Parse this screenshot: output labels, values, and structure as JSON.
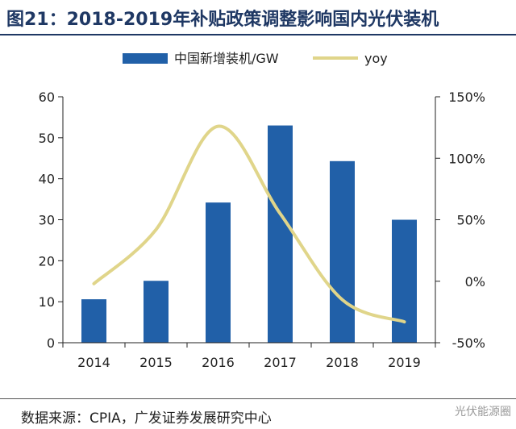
{
  "header": {
    "title": "图21：2018-2019年补贴政策调整影响国内光伏装机"
  },
  "footer": {
    "source": "数据来源：CPIA，广发证券发展研究中心",
    "watermark": "光伏能源圈"
  },
  "colors": {
    "bar": "#2160a8",
    "line": "#e0d58a",
    "title": "#1f3864"
  },
  "chart_data": {
    "type": "bar",
    "categories": [
      "2014",
      "2015",
      "2016",
      "2017",
      "2018",
      "2019"
    ],
    "series": [
      {
        "name": "中国新增装机/GW",
        "type": "bar",
        "axis": "left",
        "values": [
          10.6,
          15.1,
          34.2,
          53,
          44.3,
          30
        ]
      },
      {
        "name": "yoy",
        "type": "line",
        "axis": "right",
        "values": [
          -2,
          42,
          126,
          55,
          -15,
          -33
        ]
      }
    ],
    "y_left": {
      "ticks": [
        "0",
        "10",
        "20",
        "30",
        "40",
        "50",
        "60"
      ],
      "ylim": [
        0,
        60
      ]
    },
    "y_right": {
      "ticks": [
        "-50%",
        "0%",
        "50%",
        "100%",
        "150%"
      ],
      "ylim": [
        -50,
        150
      ]
    },
    "legend_position": "top",
    "grid": false
  }
}
